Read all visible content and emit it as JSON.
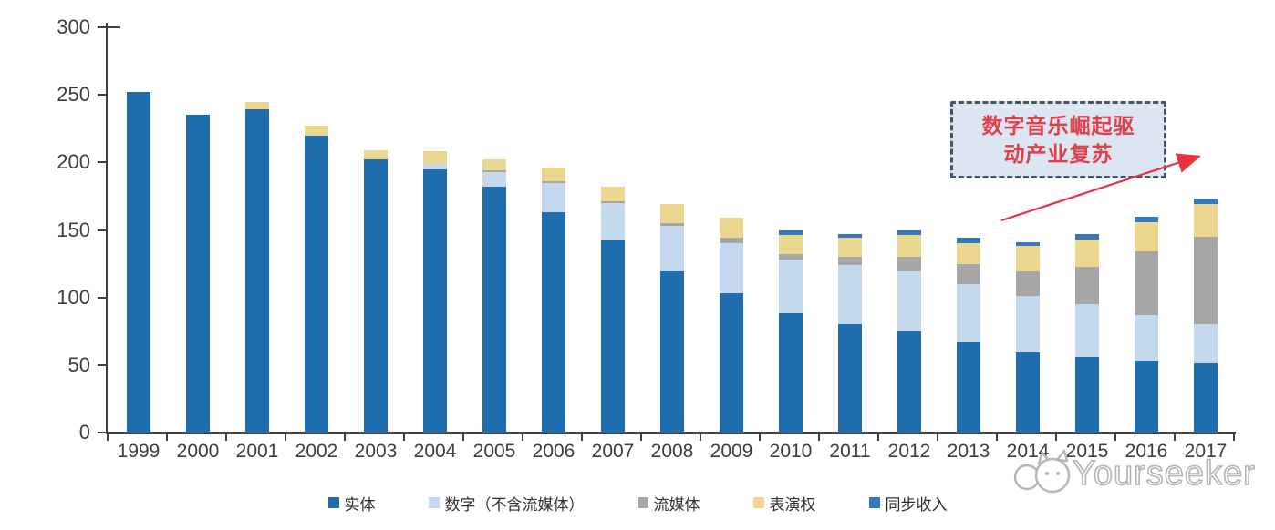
{
  "chart_data": {
    "type": "bar",
    "stacked": true,
    "title": "",
    "categories": [
      "1999",
      "2000",
      "2001",
      "2002",
      "2003",
      "2004",
      "2005",
      "2006",
      "2007",
      "2008",
      "2009",
      "2010",
      "2011",
      "2012",
      "2013",
      "2014",
      "2015",
      "2016",
      "2017"
    ],
    "series": [
      {
        "key": "physical",
        "name": "实体",
        "color": "#1F6DAD",
        "values": [
          252,
          235,
          239,
          220,
          202,
          195,
          182,
          163,
          142,
          119,
          103,
          88,
          80,
          75,
          67,
          59,
          56,
          53,
          51
        ]
      },
      {
        "key": "digital-excl-streaming",
        "name": "数字（不含流媒体）",
        "color": "#C5D9EE",
        "values": [
          0,
          0,
          0,
          0,
          0,
          4,
          11,
          22,
          28,
          34,
          37,
          40,
          44,
          44,
          43,
          42,
          39,
          34,
          29
        ]
      },
      {
        "key": "streaming",
        "name": "流媒体",
        "color": "#A6A6A6",
        "values": [
          0,
          0,
          0,
          0,
          0,
          0,
          1,
          1,
          1,
          2,
          4,
          4,
          6,
          11,
          15,
          18,
          28,
          47,
          65
        ]
      },
      {
        "key": "performance-rights",
        "name": "表演权",
        "color": "#EBD78F",
        "values": [
          0,
          0,
          6,
          7,
          7,
          9,
          8,
          10,
          11,
          14,
          15,
          14,
          14,
          16,
          15,
          19,
          20,
          22,
          24
        ]
      },
      {
        "key": "sync",
        "name": "同步收入",
        "color": "#3579BC",
        "values": [
          0,
          0,
          0,
          0,
          0,
          0,
          0,
          0,
          0,
          0,
          0,
          4,
          3,
          4,
          4,
          3,
          4,
          4,
          4
        ]
      }
    ],
    "xlabel": "",
    "ylabel": "",
    "ylim": [
      0,
      300
    ],
    "yticks": [
      0,
      50,
      100,
      150,
      200,
      250,
      300
    ],
    "grid": false,
    "legend_position": "bottom"
  },
  "annotation": {
    "line1": "数字音乐崛起驱",
    "line2": "动产业复苏",
    "text_color": "#E0404E",
    "box_fill": "#DCE6F2",
    "box_border": "#44546A",
    "arrow_color": "#E8323E"
  },
  "watermark": {
    "text": "Yourseeker",
    "color": "#B3B3B3"
  },
  "colors": {
    "axis": "#404040",
    "tick_label": "#3D3D3D"
  }
}
